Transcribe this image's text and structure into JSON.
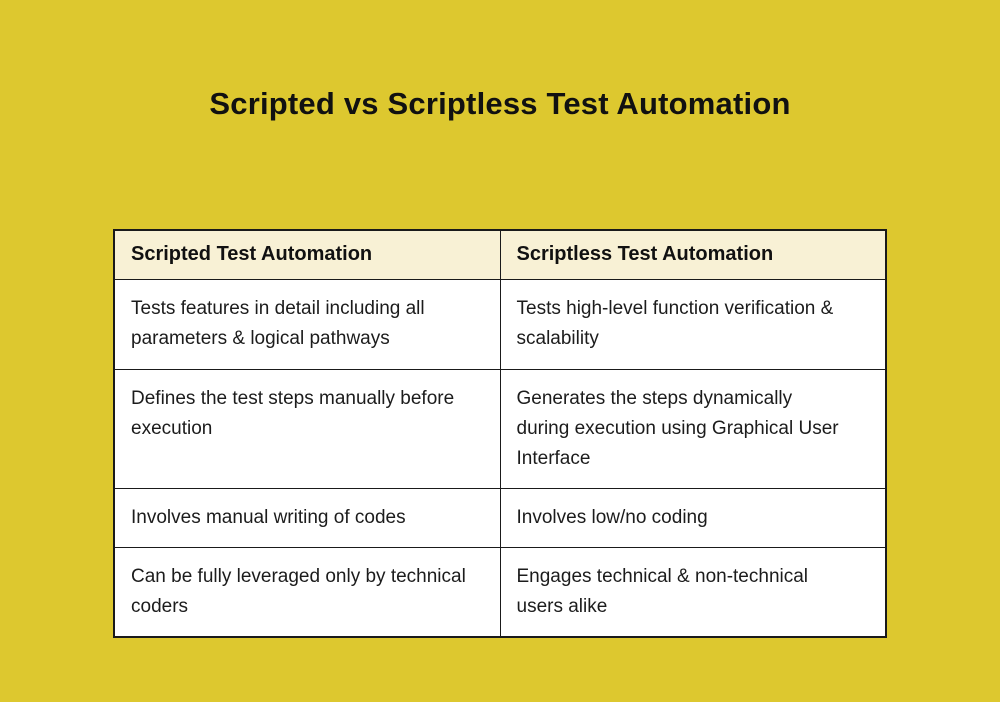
{
  "title": "Scripted vs Scriptless Test Automation",
  "colors": {
    "page_background": "#ddc82f",
    "header_background": "#f8f1d5",
    "cell_background": "#ffffff",
    "border": "#1a1a1a",
    "text": "#1c1c1c"
  },
  "table": {
    "headers": [
      "Scripted Test Automation",
      "Scriptless Test Automation"
    ],
    "rows": [
      [
        "Tests features in detail including all parameters & logical pathways",
        "Tests high-level function verification & scalability"
      ],
      [
        "Defines the test steps manually before execution",
        "Generates the steps dynamically during execution using Graphical User Interface"
      ],
      [
        "Involves manual writing of codes",
        "Involves low/no coding"
      ],
      [
        "Can be fully leveraged only by technical coders",
        "Engages technical & non-technical users alike"
      ]
    ]
  }
}
